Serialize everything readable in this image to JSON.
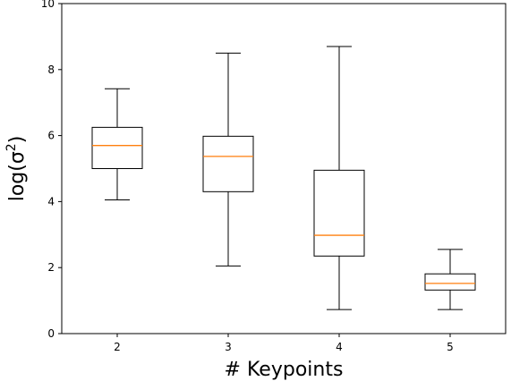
{
  "chart_data": {
    "type": "boxplot",
    "title": "",
    "xlabel": "# Keypoints",
    "ylabel": "log(σ²)",
    "ylabel_base": "log(σ",
    "ylabel_sup": "2",
    "ylabel_close": ")",
    "categories": [
      "2",
      "3",
      "4",
      "5"
    ],
    "ylim": [
      0,
      10
    ],
    "yticks": [
      "0",
      "2",
      "4",
      "6",
      "8",
      "10"
    ],
    "grid": false,
    "legend": "none",
    "box_color": "#000000",
    "median_color": "#ff7f0e",
    "boxes": [
      {
        "category": "2",
        "whisker_low": 4.05,
        "q1": 5.0,
        "median": 5.7,
        "q3": 6.25,
        "whisker_high": 7.42
      },
      {
        "category": "3",
        "whisker_low": 2.05,
        "q1": 4.3,
        "median": 5.37,
        "q3": 5.98,
        "whisker_high": 8.5
      },
      {
        "category": "4",
        "whisker_low": 0.73,
        "q1": 2.35,
        "median": 2.98,
        "q3": 4.95,
        "whisker_high": 8.7
      },
      {
        "category": "5",
        "whisker_low": 0.73,
        "q1": 1.32,
        "median": 1.52,
        "q3": 1.81,
        "whisker_high": 2.55
      }
    ]
  }
}
